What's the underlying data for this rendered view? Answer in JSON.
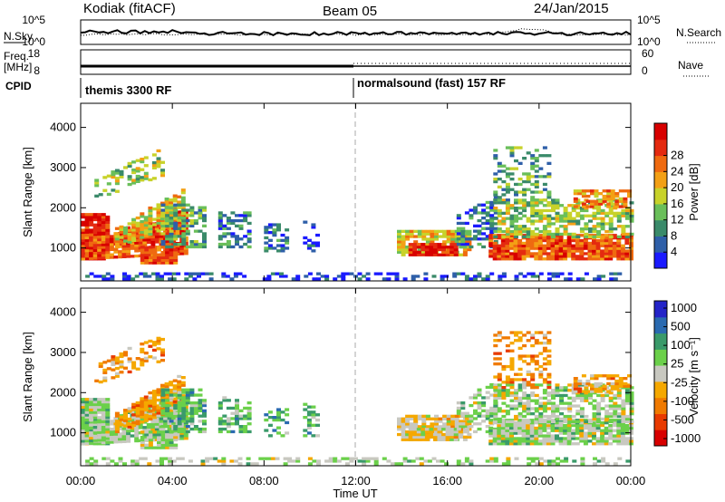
{
  "header": {
    "radar": "Kodiak (fitACF)",
    "beam": "Beam 05",
    "date": "24/Jan/2015"
  },
  "strip_nsky": {
    "left_label": "N.Sky",
    "right_label": "N.Search",
    "left_ticks": [
      "10^5",
      "10^0"
    ],
    "right_ticks": [
      "10^5",
      "10^0"
    ]
  },
  "strip_freq": {
    "left_label_1": "Freq.",
    "left_label_2": "[MHz]",
    "right_label": "Nave",
    "left_ticks": [
      "18",
      "8"
    ],
    "right_ticks": [
      "60",
      "0"
    ]
  },
  "cpid": {
    "label": "CPID",
    "mode_1": "themis 3300 RF",
    "mode_2": "normalsound (fast) 157 RF"
  },
  "colors": {
    "power_scale": [
      "#1a1aff",
      "#2e5fa8",
      "#3a8a6a",
      "#6abf5a",
      "#c8d22a",
      "#f3a015",
      "#ef6a10",
      "#e42a10",
      "#d80000"
    ],
    "velocity_scale": [
      "#2424c8",
      "#2a6ab0",
      "#3a9a6a",
      "#6bd04a",
      "#c8c8c0",
      "#f5a800",
      "#f07a00",
      "#e83a00",
      "#d80000"
    ],
    "ground_scatter": "#c8c8c0"
  },
  "chart_data": [
    {
      "type": "heatmap",
      "title": "Power",
      "ylabel": "Slant Range [km]",
      "ylim": [
        180,
        4600
      ],
      "y_ticks": [
        "1000",
        "2000",
        "3000",
        "4000"
      ],
      "x_ticks": [
        "00:00",
        "04:00",
        "08:00",
        "12:00",
        "16:00",
        "20:00",
        "00:00"
      ],
      "xlim_hours": [
        0,
        24
      ],
      "colorbar": {
        "label": "Power [dB]",
        "range": [
          0,
          32
        ],
        "ticks": [
          "4",
          "8",
          "12",
          "16",
          "20",
          "24",
          "28"
        ]
      }
    },
    {
      "type": "heatmap",
      "title": "Velocity",
      "ylabel": "Slant Range [km]",
      "xlabel": "Time UT",
      "ylim": [
        180,
        4600
      ],
      "y_ticks": [
        "1000",
        "2000",
        "3000",
        "4000"
      ],
      "x_ticks": [
        "00:00",
        "04:00",
        "08:00",
        "12:00",
        "16:00",
        "20:00",
        "00:00"
      ],
      "xlim_hours": [
        0,
        24
      ],
      "colorbar": {
        "label": "Velocity [m s⁻¹]",
        "ticks": [
          "1000",
          "500",
          "100",
          "25",
          "-25",
          "-100",
          "-500",
          "-1000"
        ]
      }
    }
  ]
}
